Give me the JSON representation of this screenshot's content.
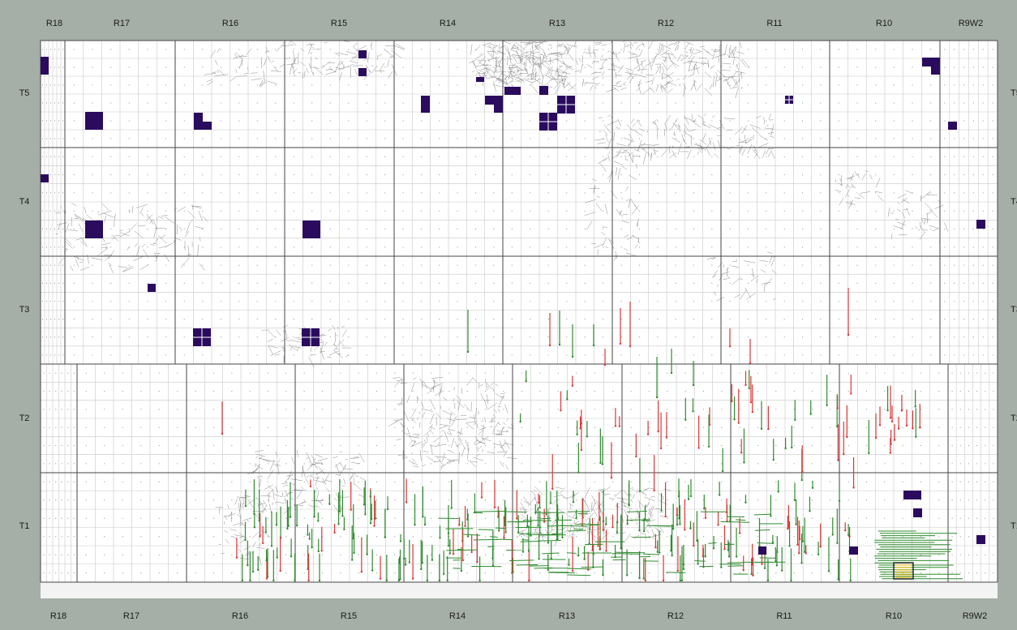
{
  "map": {
    "ranges_top": [
      "R18",
      "R17",
      "R16",
      "R15",
      "R14",
      "R13",
      "R12",
      "R11",
      "R10",
      "R9W2"
    ],
    "ranges_bottom": [
      "R18",
      "R17",
      "R16",
      "R15",
      "R14",
      "R13",
      "R12",
      "R11",
      "R10",
      "R9W2"
    ],
    "townships_left": [
      "T5",
      "T4",
      "T3",
      "T2",
      "T1"
    ],
    "townships_right": [
      "T5",
      "T4",
      "T3",
      "T2",
      "T1"
    ],
    "colors": {
      "background": "#a6afa7",
      "map": "#ffffff",
      "grid_minor": "#c8c8c8",
      "grid_major": "#444444",
      "parcel": "#2a0b5e",
      "well_green": "#2e8b2e",
      "well_red": "#e03434",
      "pipeline": "#8a8a8a",
      "highlight": "#f2c230"
    },
    "icons": {
      "parcel": "filled-square",
      "well_line": "vertical-line",
      "pipeline": "hatched-line"
    }
  }
}
